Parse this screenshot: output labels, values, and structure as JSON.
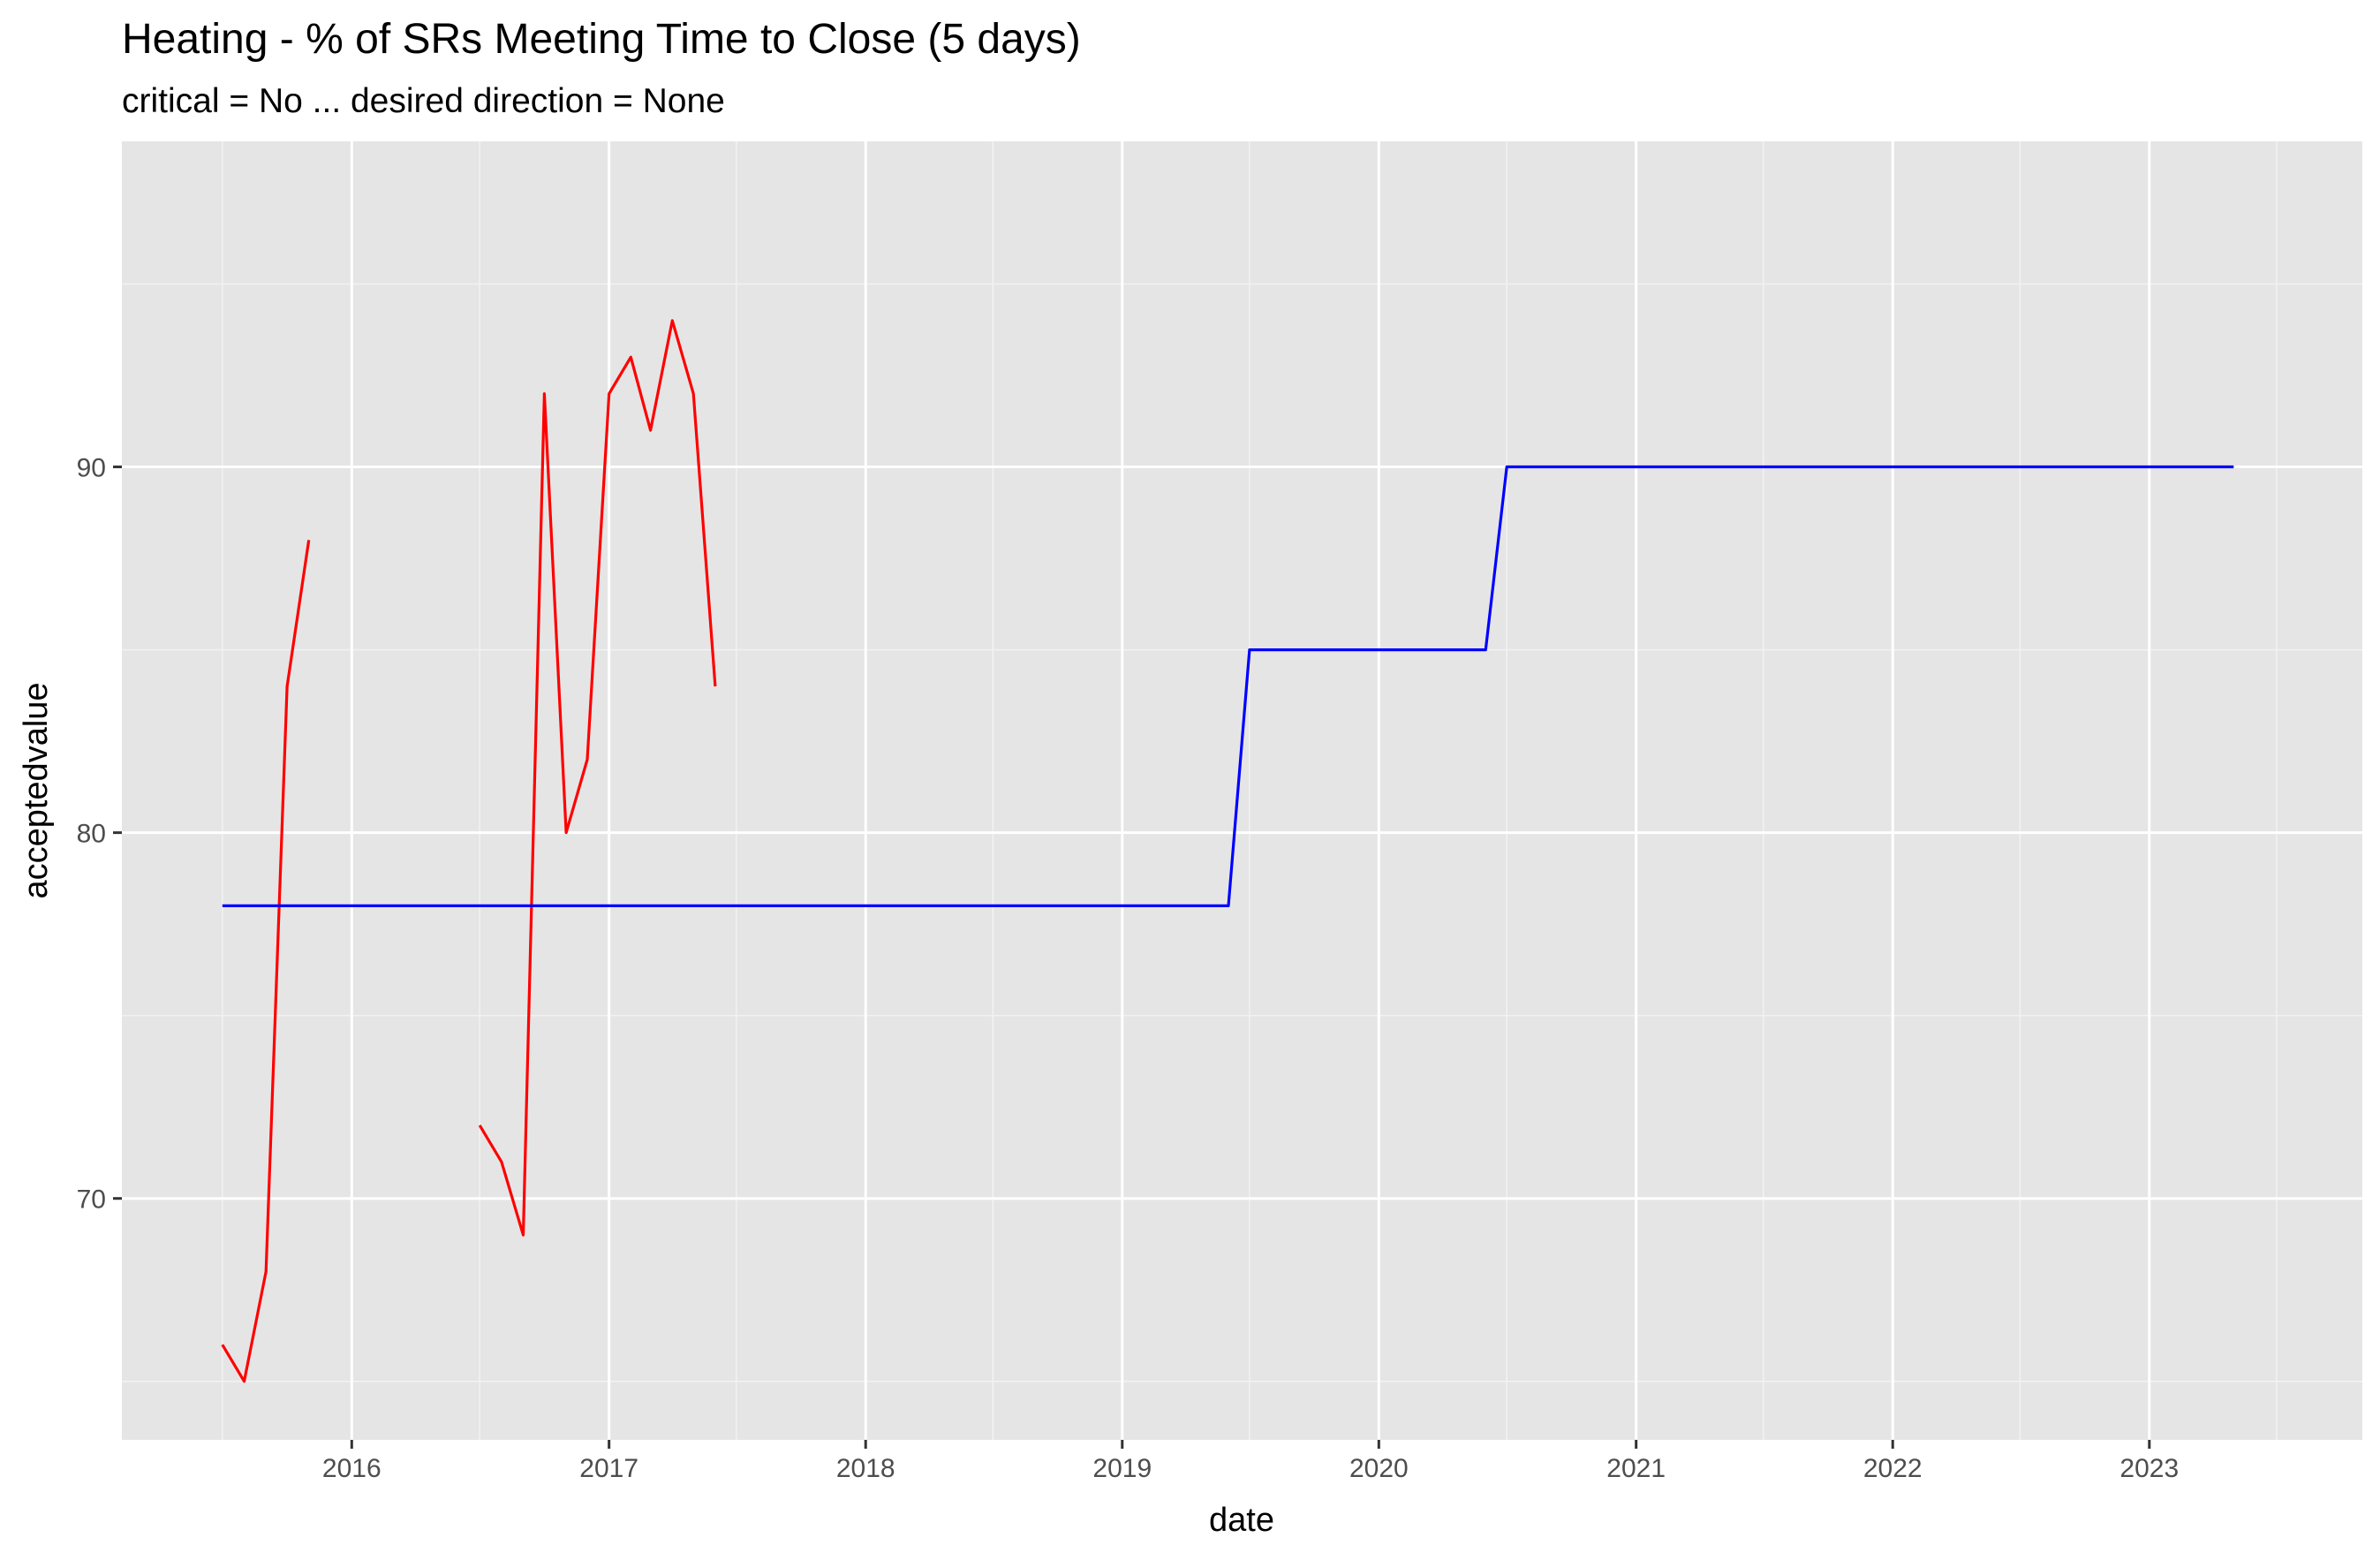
{
  "chart_data": {
    "type": "line",
    "title": "Heating - % of SRs Meeting Time to Close (5 days)",
    "subtitle": "critical = No ... desired direction = None",
    "xlabel": "date",
    "ylabel": "acceptedvalue",
    "x_axis": {
      "type": "date",
      "range": [
        "2015-02-08",
        "2023-10-31"
      ],
      "ticks": [
        "2016",
        "2017",
        "2018",
        "2019",
        "2020",
        "2021",
        "2022",
        "2023"
      ]
    },
    "y_axis": {
      "range": [
        63.4,
        98.9
      ],
      "ticks": [
        70,
        80,
        90
      ]
    },
    "grid": true,
    "legend": "none",
    "series": [
      {
        "color": "#ff0000",
        "points": [
          {
            "x": "2015-07-01",
            "y": 66
          },
          {
            "x": "2015-08-01",
            "y": 65
          },
          {
            "x": "2015-09-01",
            "y": 68
          },
          {
            "x": "2015-10-01",
            "y": 84
          },
          {
            "x": "2015-11-01",
            "y": 88
          },
          {
            "x": "2016-07-01",
            "y": 72
          },
          {
            "x": "2016-08-01",
            "y": 71
          },
          {
            "x": "2016-09-01",
            "y": 69
          },
          {
            "x": "2016-10-01",
            "y": 92
          },
          {
            "x": "2016-11-01",
            "y": 80
          },
          {
            "x": "2016-12-01",
            "y": 82
          },
          {
            "x": "2017-01-01",
            "y": 92
          },
          {
            "x": "2017-02-01",
            "y": 93
          },
          {
            "x": "2017-03-01",
            "y": 91
          },
          {
            "x": "2017-04-01",
            "y": 94
          },
          {
            "x": "2017-05-01",
            "y": 92
          },
          {
            "x": "2017-06-01",
            "y": 84
          }
        ],
        "breaks_after": [
          "2015-11-01"
        ]
      },
      {
        "color": "#0000ff",
        "points": [
          {
            "x": "2015-07-01",
            "y": 78
          },
          {
            "x": "2019-06-01",
            "y": 78
          },
          {
            "x": "2019-07-01",
            "y": 85
          },
          {
            "x": "2020-06-01",
            "y": 85
          },
          {
            "x": "2020-07-01",
            "y": 90
          },
          {
            "x": "2023-05-01",
            "y": 90
          }
        ]
      }
    ]
  }
}
